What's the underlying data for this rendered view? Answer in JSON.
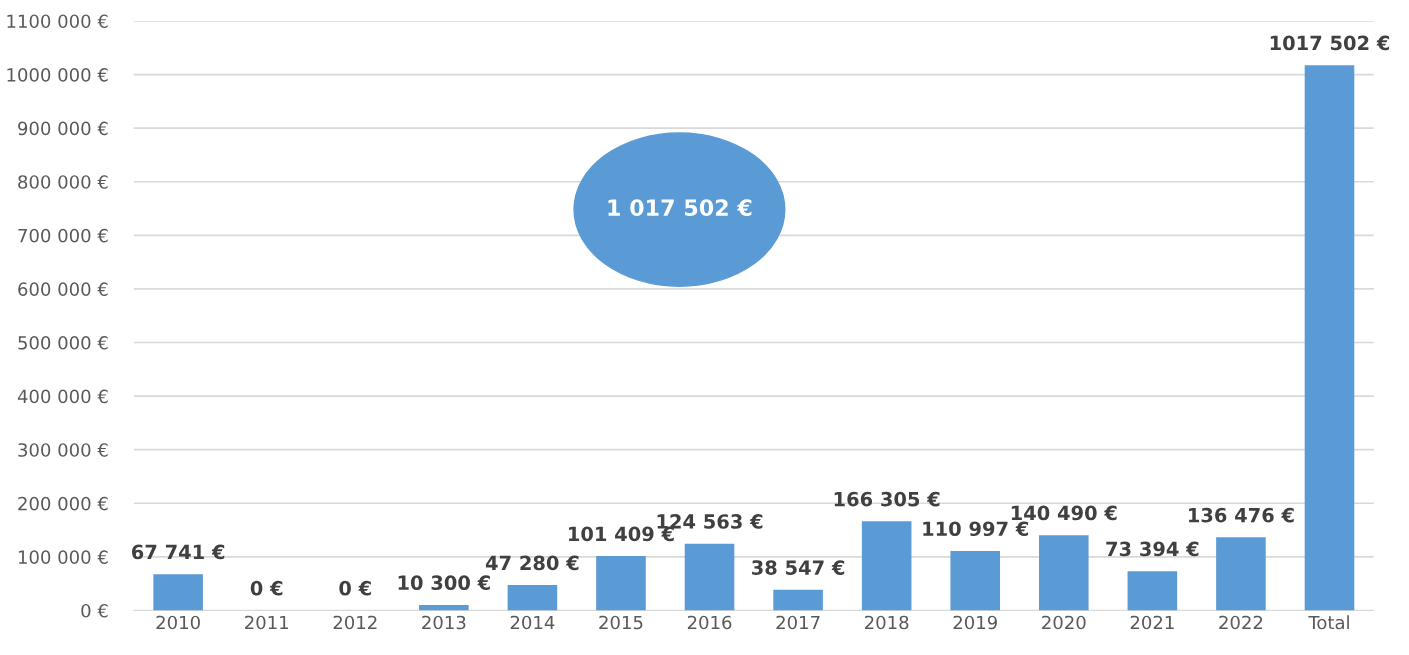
{
  "chart_data": {
    "type": "bar",
    "categories": [
      "2010",
      "2011",
      "2012",
      "2013",
      "2014",
      "2015",
      "2016",
      "2017",
      "2018",
      "2019",
      "2020",
      "2021",
      "2022",
      "Total"
    ],
    "values": [
      67741,
      0,
      0,
      10300,
      47280,
      101409,
      124563,
      38547,
      166305,
      110997,
      140490,
      73394,
      136476,
      1017502
    ],
    "value_labels": [
      "67 741 €",
      "0 €",
      "0 €",
      "10 300 €",
      "47 280 €",
      "101 409 €",
      "124 563 €",
      "38 547 €",
      "166 305 €",
      "110 997 €",
      "140 490 €",
      "73 394 €",
      "136 476 €",
      "1017 502 €"
    ],
    "color": "#5b9bd5",
    "ylim": [
      0,
      1100000
    ],
    "yticks": [
      {
        "value": 0,
        "label": "0 €"
      },
      {
        "value": 100000,
        "label": "100 000 €"
      },
      {
        "value": 200000,
        "label": "200 000 €"
      },
      {
        "value": 300000,
        "label": "300 000 €"
      },
      {
        "value": 400000,
        "label": "400 000 €"
      },
      {
        "value": 500000,
        "label": "500 000 €"
      },
      {
        "value": 600000,
        "label": "600 000 €"
      },
      {
        "value": 700000,
        "label": "700 000 €"
      },
      {
        "value": 800000,
        "label": "800 000 €"
      },
      {
        "value": 900000,
        "label": "900 000 €"
      },
      {
        "value": 1000000,
        "label": "1000 000 €"
      },
      {
        "value": 1100000,
        "label": "1100 000 €"
      }
    ],
    "grid": "y",
    "legend": false,
    "annotations": [
      "1 017 502 €"
    ]
  }
}
